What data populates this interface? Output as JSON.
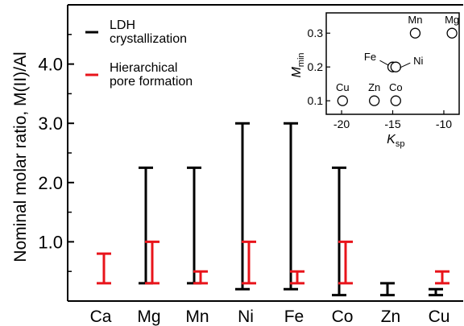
{
  "chart_data": [
    {
      "type": "range-bar",
      "title": "",
      "xlabel": "",
      "ylabel": "Nominal molar ratio, M(II)/Al",
      "ylim": [
        0,
        5.0
      ],
      "yticks": [
        "1.0",
        "2.0",
        "3.0",
        "4.0"
      ],
      "ytick_values": [
        1.0,
        2.0,
        3.0,
        4.0
      ],
      "categories": [
        "Ca",
        "Mg",
        "Mn",
        "Ni",
        "Fe",
        "Co",
        "Zn",
        "Cu"
      ],
      "legend_position": "top-left",
      "series": [
        {
          "name": "LDH crystallization",
          "color": "#000000",
          "ranges": [
            null,
            [
              0.3,
              2.25
            ],
            [
              0.3,
              2.25
            ],
            [
              0.2,
              3.0
            ],
            [
              0.2,
              3.0
            ],
            [
              0.1,
              2.25
            ],
            [
              0.1,
              0.3
            ],
            [
              0.1,
              0.2
            ]
          ]
        },
        {
          "name": "Hierarchical pore formation",
          "color": "#e8141b",
          "ranges": [
            [
              0.3,
              0.8
            ],
            [
              0.3,
              1.0
            ],
            [
              0.3,
              0.5
            ],
            [
              0.3,
              1.0
            ],
            [
              0.3,
              0.5
            ],
            [
              0.3,
              1.0
            ],
            null,
            [
              0.3,
              0.5
            ]
          ]
        }
      ],
      "legend_labels": [
        {
          "line1": "LDH",
          "line2": "crystallization"
        },
        {
          "line1": "Hierarchical",
          "line2": "pore formation"
        }
      ]
    },
    {
      "type": "scatter",
      "title": "",
      "xlabel_main": "K",
      "xlabel_sub": "sp",
      "ylabel_main": "M",
      "ylabel_sub": "min",
      "xlim": [
        -21.5,
        -8.5
      ],
      "ylim": [
        0.06,
        0.36
      ],
      "xticks": [
        "-20",
        "-15",
        "-10"
      ],
      "xtick_values": [
        -20,
        -15,
        -10
      ],
      "yticks": [
        "0.1",
        "0.2",
        "0.3"
      ],
      "ytick_values": [
        0.1,
        0.2,
        0.3
      ],
      "points": [
        {
          "label": "Cu",
          "x": -19.9,
          "y": 0.1
        },
        {
          "label": "Zn",
          "x": -16.8,
          "y": 0.1
        },
        {
          "label": "Co",
          "x": -14.7,
          "y": 0.1
        },
        {
          "label": "Fe",
          "x": -15.0,
          "y": 0.2
        },
        {
          "label": "Ni",
          "x": -14.7,
          "y": 0.2
        },
        {
          "label": "Mn",
          "x": -12.8,
          "y": 0.3
        },
        {
          "label": "Mg",
          "x": -9.2,
          "y": 0.3
        }
      ]
    }
  ]
}
